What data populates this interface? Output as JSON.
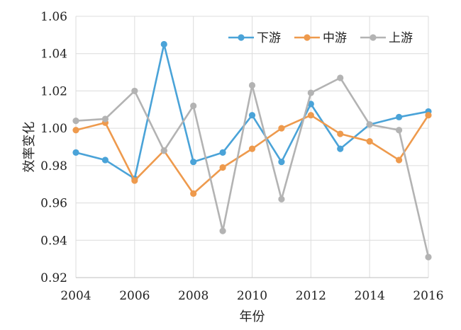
{
  "chart_data": {
    "type": "line",
    "x": [
      2004,
      2005,
      2006,
      2007,
      2008,
      2009,
      2010,
      2011,
      2012,
      2013,
      2014,
      2015,
      2016
    ],
    "series": [
      {
        "name": "下游",
        "color": "#4aa3d8",
        "values": [
          0.987,
          0.983,
          0.973,
          1.045,
          0.982,
          0.987,
          1.007,
          0.982,
          1.013,
          0.989,
          1.002,
          1.006,
          1.009
        ]
      },
      {
        "name": "中游",
        "color": "#ee9a4d",
        "values": [
          0.999,
          1.003,
          0.972,
          0.988,
          0.965,
          0.979,
          0.989,
          1.0,
          1.007,
          0.997,
          0.993,
          0.983,
          1.007
        ]
      },
      {
        "name": "上游",
        "color": "#b3b3b3",
        "values": [
          1.004,
          1.005,
          1.02,
          0.988,
          1.012,
          0.945,
          1.023,
          0.962,
          1.019,
          1.027,
          1.002,
          0.999,
          0.931
        ]
      }
    ],
    "xlabel": "年份",
    "ylabel": "效率变化",
    "xlim": [
      2004,
      2016
    ],
    "ylim": [
      0.92,
      1.06
    ],
    "xticks": [
      "2004",
      "2006",
      "2008",
      "2010",
      "2012",
      "2014",
      "2016"
    ],
    "yticks": [
      "0.92",
      "0.94",
      "0.96",
      "0.98",
      "1.00",
      "1.02",
      "1.04",
      "1.06"
    ],
    "grid": true,
    "legend_position": "top-right"
  }
}
